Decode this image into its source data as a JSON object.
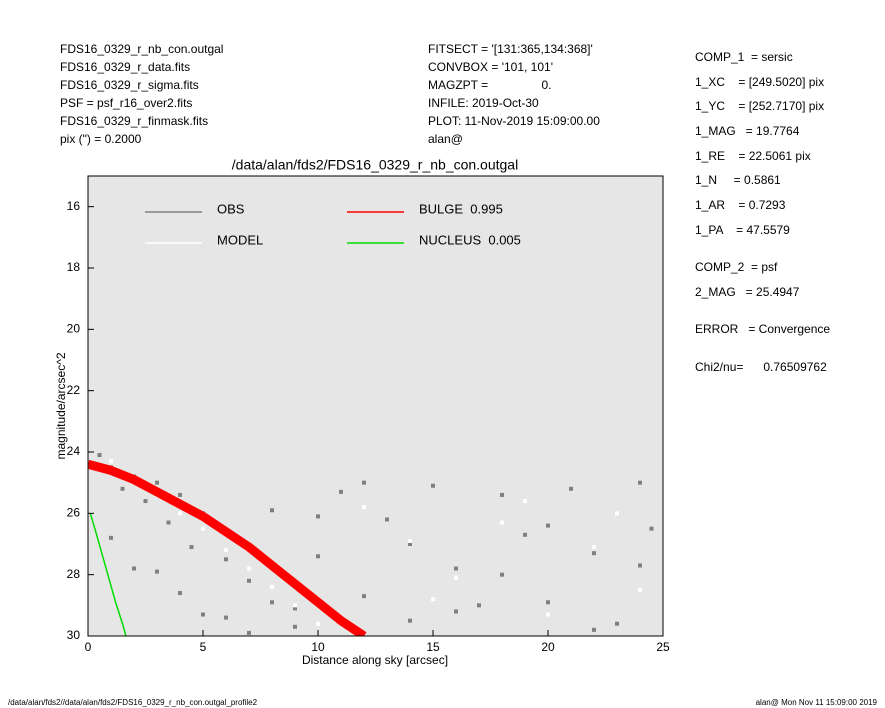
{
  "header_left": [
    "FDS16_0329_r_nb_con.outgal",
    "FDS16_0329_r_data.fits",
    "FDS16_0329_r_sigma.fits",
    "PSF     = psf_r16_over2.fits",
    "FDS16_0329_r_finmask.fits",
    "pix (\") =  0.2000"
  ],
  "header_center": [
    "FITSECT = '[131:365,134:368]'",
    "CONVBOX = '101, 101'",
    "MAGZPT =                0.",
    "INFILE: 2019-Oct-30",
    "PLOT: 11-Nov-2019 15:09:00.00",
    "alan@"
  ],
  "header_right": [
    "COMP_1  = sersic",
    "1_XC    = [249.5020] pix",
    "1_YC    = [252.7170] pix",
    "1_MAG   = 19.7764",
    "1_RE    = 22.5061 pix",
    "1_N     = 0.5861",
    "1_AR    = 0.7293",
    "1_PA    = 47.5579",
    "COMP_2  = psf",
    "2_MAG   = 25.4947",
    "ERROR   = Convergence",
    "Chi2/nu=      0.76509762"
  ],
  "footer_left": "/data/alan/fds2//data/alan/fds2/FDS16_0329_r_nb_con.outgal_profile2",
  "footer_right": "alan@  Mon Nov 11 15:09:00 2019",
  "chart_data": {
    "type": "scatter",
    "title": "/data/alan/fds2/FDS16_0329_r_nb_con.outgal",
    "xlabel": "Distance along sky [arcsec]",
    "ylabel": "magnitude/arcsec^2",
    "xlim": [
      0,
      25
    ],
    "xticks": [
      0,
      5,
      10,
      15,
      20,
      25
    ],
    "ylim": [
      30,
      15
    ],
    "yticks": [
      16,
      18,
      20,
      22,
      24,
      26,
      28,
      30
    ],
    "background": "#e6e6e6",
    "series": [
      {
        "name": "OBS",
        "color": "#808080",
        "mode": "points",
        "x": [
          0.5,
          1,
          1.5,
          2,
          2.5,
          3,
          3.5,
          4,
          4.5,
          5,
          6,
          7,
          8,
          9,
          10,
          11,
          12,
          13,
          14,
          15,
          16,
          17,
          18,
          19,
          20,
          21,
          22,
          23,
          24,
          24.5,
          2,
          4,
          6,
          8,
          10,
          12,
          14,
          16,
          18,
          20,
          22,
          24,
          1,
          3,
          5,
          7,
          9
        ],
        "values": [
          24.1,
          24.5,
          25.2,
          24.8,
          25.6,
          25.0,
          26.3,
          25.4,
          27.1,
          26.0,
          27.5,
          28.2,
          25.9,
          29.1,
          27.4,
          25.3,
          28.7,
          26.2,
          29.5,
          25.1,
          27.8,
          29.0,
          25.4,
          26.7,
          28.9,
          25.2,
          27.3,
          29.6,
          25.0,
          26.5,
          27.8,
          28.6,
          29.4,
          28.9,
          26.1,
          25.0,
          27.0,
          29.2,
          28.0,
          26.4,
          29.8,
          27.7,
          26.8,
          27.9,
          29.3,
          29.9,
          29.7
        ]
      },
      {
        "name": "MODEL",
        "color": "#ffffff",
        "mode": "points",
        "x": [
          1,
          2,
          3,
          4,
          5,
          6,
          7,
          8,
          9,
          10,
          12,
          14,
          16,
          18,
          20,
          22,
          24,
          15,
          19,
          23
        ],
        "values": [
          24.3,
          24.9,
          25.4,
          26.0,
          26.5,
          27.2,
          27.8,
          28.4,
          29.0,
          29.6,
          25.8,
          26.9,
          28.1,
          26.3,
          29.3,
          27.1,
          28.5,
          28.8,
          25.6,
          26.0
        ]
      },
      {
        "name": "BULGE  0.995",
        "color": "#ff0000",
        "mode": "line",
        "x": [
          0,
          1,
          2,
          3,
          4,
          5,
          6,
          7,
          8,
          9,
          10,
          11,
          12
        ],
        "values": [
          24.4,
          24.6,
          24.9,
          25.3,
          25.7,
          26.1,
          26.6,
          27.1,
          27.7,
          28.3,
          28.9,
          29.5,
          30.0
        ]
      },
      {
        "name": "NUCLEUS  0.005",
        "color": "#00dd00",
        "mode": "line",
        "x": [
          0.1,
          0.3,
          0.6,
          0.9,
          1.2,
          1.5,
          1.65
        ],
        "values": [
          26.0,
          26.5,
          27.3,
          28.1,
          28.9,
          29.6,
          30.0
        ]
      }
    ]
  }
}
